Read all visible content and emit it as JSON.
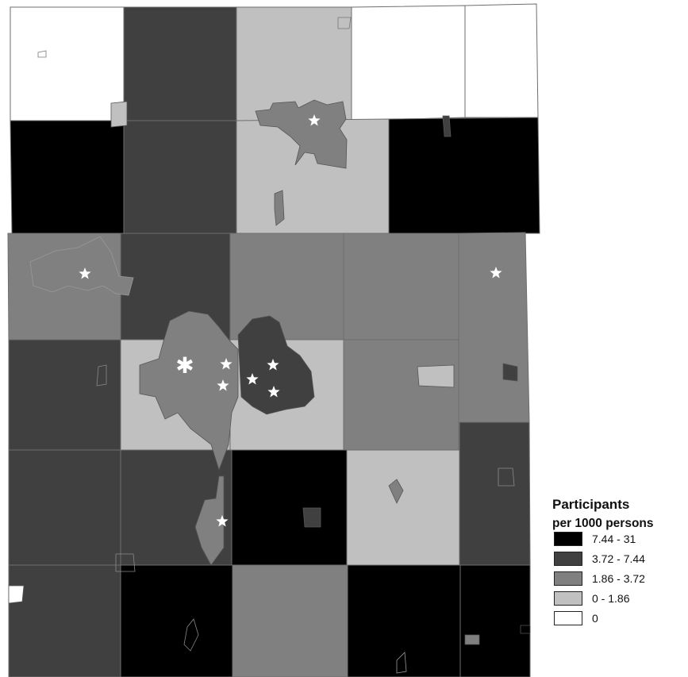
{
  "legend": {
    "title_line1": "Participants",
    "title_line2": "per 1000 persons",
    "classes": [
      {
        "label": "7.44 - 31",
        "color": "#000000",
        "level": "c5"
      },
      {
        "label": "3.72 - 7.44",
        "color": "#404040",
        "level": "c4"
      },
      {
        "label": "1.86 - 3.72",
        "color": "#808080",
        "level": "c3"
      },
      {
        "label": "0 - 1.86",
        "color": "#c0c0c0",
        "level": "c2"
      },
      {
        "label": "0",
        "color": "#ffffff",
        "level": "c1"
      }
    ]
  },
  "map": {
    "layer": "townships",
    "symbols": {
      "site_marker": "white-star-icon",
      "special_marker": "white-asterisk-icon"
    },
    "boundary_color": "#6e6e6e",
    "township_classes": [
      [
        "c1",
        "c4",
        "c2",
        "c1",
        "c1"
      ],
      [
        "c5",
        "c4",
        "c2",
        "c5"
      ],
      [
        "c3",
        "c4",
        "c3",
        "c3",
        "c3"
      ],
      [
        "c4",
        "c2",
        "c2",
        "c3",
        "c3"
      ],
      [
        "c4",
        "c4",
        "c5",
        "c2",
        "c4"
      ],
      [
        "c4",
        "c5",
        "c3",
        "c5",
        "c5"
      ]
    ]
  }
}
